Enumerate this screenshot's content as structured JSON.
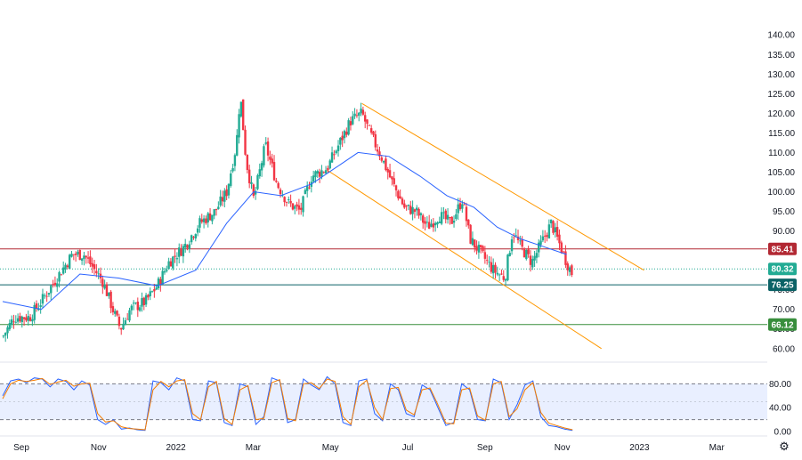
{
  "chart_data": [
    {
      "type": "candlestick",
      "title": "",
      "ylim": [
        57,
        143
      ],
      "y_ticks": [
        "140.00",
        "135.00",
        "130.00",
        "125.00",
        "120.00",
        "115.00",
        "110.00",
        "105.00",
        "100.00",
        "95.00",
        "90.00",
        "85.00",
        "80.00",
        "75.00",
        "70.00",
        "65.00",
        "60.00"
      ],
      "y_tick_values": [
        140,
        135,
        130,
        125,
        120,
        115,
        110,
        105,
        100,
        95,
        90,
        85,
        80,
        75,
        70,
        65,
        60
      ],
      "x_labels": [
        "Sep",
        "Nov",
        "2022",
        "Mar",
        "May",
        "Jul",
        "Sep",
        "Nov",
        "2023",
        "Mar"
      ],
      "x_label_values": [
        0,
        2,
        4,
        6,
        8,
        10,
        12,
        14,
        16,
        18
      ],
      "x_range": [
        0,
        20
      ],
      "close_path_monthly": [
        [
          0,
          63
        ],
        [
          0.3,
          68
        ],
        [
          0.7,
          68
        ],
        [
          1.0,
          72
        ],
        [
          1.4,
          78
        ],
        [
          1.8,
          84
        ],
        [
          2.1,
          84
        ],
        [
          2.6,
          77
        ],
        [
          2.85,
          70
        ],
        [
          3.05,
          65
        ],
        [
          3.3,
          70
        ],
        [
          3.7,
          72
        ],
        [
          4.0,
          76
        ],
        [
          4.3,
          82
        ],
        [
          4.7,
          86
        ],
        [
          5.1,
          92
        ],
        [
          5.5,
          95
        ],
        [
          5.8,
          100
        ],
        [
          6.05,
          112
        ],
        [
          6.15,
          125
        ],
        [
          6.3,
          108
        ],
        [
          6.5,
          98
        ],
        [
          6.8,
          112
        ],
        [
          7.1,
          102
        ],
        [
          7.4,
          97
        ],
        [
          7.7,
          95
        ],
        [
          8.0,
          104
        ],
        [
          8.4,
          106
        ],
        [
          8.7,
          112
        ],
        [
          9.0,
          118
        ],
        [
          9.3,
          120
        ],
        [
          9.5,
          115
        ],
        [
          9.8,
          109
        ],
        [
          10.1,
          102
        ],
        [
          10.4,
          96
        ],
        [
          10.7,
          95
        ],
        [
          11.0,
          91
        ],
        [
          11.3,
          94
        ],
        [
          11.6,
          92
        ],
        [
          11.9,
          98
        ],
        [
          12.1,
          88
        ],
        [
          12.4,
          84
        ],
        [
          12.7,
          80
        ],
        [
          13.0,
          78
        ],
        [
          13.2,
          90
        ],
        [
          13.4,
          86
        ],
        [
          13.7,
          82
        ],
        [
          14.0,
          88
        ],
        [
          14.2,
          92
        ],
        [
          14.4,
          87
        ],
        [
          14.6,
          82
        ],
        [
          14.75,
          79
        ]
      ],
      "moving_average": [
        [
          0,
          72
        ],
        [
          1.0,
          70
        ],
        [
          2.0,
          79
        ],
        [
          3.0,
          78
        ],
        [
          4.0,
          76
        ],
        [
          5.0,
          80
        ],
        [
          5.8,
          92
        ],
        [
          6.5,
          100
        ],
        [
          7.2,
          99
        ],
        [
          8.0,
          102
        ],
        [
          8.6,
          106
        ],
        [
          9.2,
          110
        ],
        [
          10.0,
          109
        ],
        [
          10.8,
          104
        ],
        [
          11.5,
          99
        ],
        [
          12.2,
          96
        ],
        [
          12.8,
          91
        ],
        [
          13.4,
          88
        ],
        [
          14.0,
          86
        ],
        [
          14.6,
          84
        ]
      ],
      "channel_upper": [
        [
          9.3,
          122.5
        ],
        [
          16.6,
          80.0
        ]
      ],
      "channel_lower": [
        [
          8.4,
          105.5
        ],
        [
          15.5,
          60.0
        ]
      ],
      "levels": [
        {
          "label": "85.41",
          "value": 85.41,
          "color": "#b22833"
        },
        {
          "label": "80.32",
          "value": 80.32,
          "color": "#22ab94",
          "dotted": true
        },
        {
          "label": "76.25",
          "value": 76.25,
          "color": "#0b6266"
        },
        {
          "label": "66.12",
          "value": 66.12,
          "color": "#388e3c"
        }
      ],
      "colors": {
        "up": "#22ab94",
        "down": "#f23645",
        "ma": "#2962ff",
        "channel": "#ff9800"
      }
    },
    {
      "type": "line",
      "title": "",
      "ylim": [
        0,
        100
      ],
      "y_ticks": [
        "80.00",
        "40.00",
        "0.00"
      ],
      "y_tick_values": [
        80,
        40,
        0
      ],
      "band": [
        20,
        80
      ],
      "series": [
        {
          "color": "#2962ff",
          "values": [
            60,
            85,
            88,
            82,
            90,
            88,
            75,
            88,
            84,
            70,
            85,
            78,
            20,
            12,
            20,
            4,
            6,
            3,
            2,
            85,
            82,
            70,
            90,
            85,
            20,
            18,
            85,
            82,
            15,
            10,
            80,
            75,
            12,
            25,
            90,
            85,
            15,
            20,
            88,
            78,
            70,
            92,
            80,
            15,
            10,
            85,
            88,
            30,
            18,
            80,
            70,
            30,
            25,
            78,
            70,
            40,
            10,
            15,
            80,
            70,
            20,
            18,
            88,
            82,
            20,
            45,
            78,
            85,
            25,
            10,
            8,
            4,
            2
          ]
        },
        {
          "color": "#f57c00",
          "values": [
            55,
            80,
            86,
            84,
            86,
            89,
            79,
            83,
            86,
            76,
            80,
            81,
            30,
            16,
            18,
            8,
            5,
            4,
            3,
            70,
            84,
            75,
            85,
            87,
            30,
            20,
            75,
            84,
            22,
            12,
            70,
            77,
            20,
            22,
            82,
            87,
            22,
            18,
            80,
            82,
            72,
            88,
            84,
            25,
            12,
            75,
            86,
            40,
            20,
            72,
            74,
            36,
            28,
            70,
            73,
            45,
            14,
            13,
            70,
            73,
            26,
            19,
            80,
            84,
            25,
            38,
            70,
            82,
            32,
            14,
            10,
            6,
            3
          ]
        }
      ]
    }
  ]
}
